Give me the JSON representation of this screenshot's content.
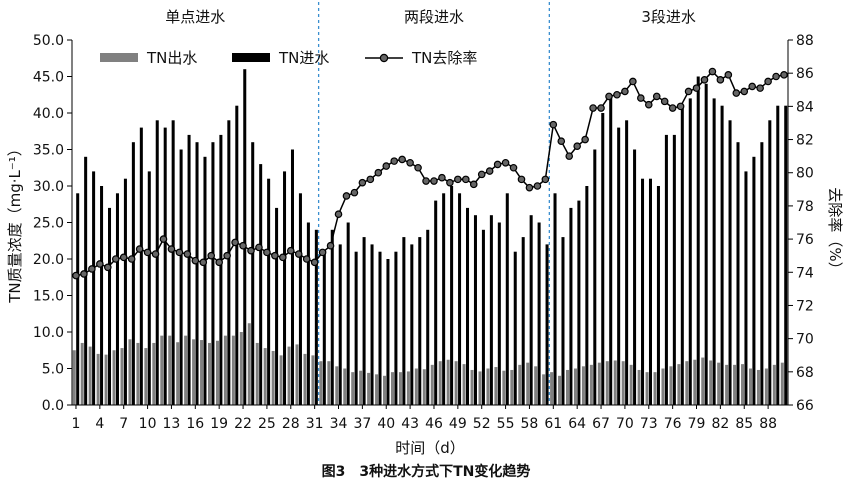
{
  "chart_data": {
    "type": "bar",
    "caption": "图3　3种进水方式下TN变化趋势",
    "xlabel": "时间（d）",
    "ylabel_left": "TN质量浓度（mg·L⁻¹）",
    "ylabel_right": "去除率（%）",
    "ylim_left": [
      0,
      50
    ],
    "ylim_right": [
      66,
      88
    ],
    "yticks_left": [
      "0.0",
      "5.0",
      "10.0",
      "15.0",
      "20.0",
      "25.0",
      "30.0",
      "35.0",
      "40.0",
      "45.0",
      "50.0"
    ],
    "yticks_right": [
      "66",
      "68",
      "70",
      "72",
      "74",
      "76",
      "78",
      "80",
      "82",
      "84",
      "86",
      "88"
    ],
    "xticks": [
      "1",
      "4",
      "7",
      "10",
      "13",
      "16",
      "19",
      "22",
      "25",
      "28",
      "31",
      "34",
      "37",
      "40",
      "43",
      "46",
      "49",
      "52",
      "55",
      "58",
      "61",
      "64",
      "67",
      "70",
      "73",
      "76",
      "79",
      "82",
      "85",
      "88"
    ],
    "sections": [
      "单点进水",
      "两段进水",
      "3段进水"
    ],
    "section_boundaries": [
      32,
      61
    ],
    "legend_position": "top",
    "colors": {
      "effluent": "#808080",
      "influent": "#000000",
      "removal": "#000000",
      "marker": "#666666",
      "divider": "#3a8fd0"
    },
    "series": [
      {
        "name": "TN出水",
        "axis": "left",
        "values": [
          7.5,
          8.5,
          8.0,
          7.0,
          6.9,
          7.5,
          7.8,
          9.0,
          8.5,
          7.8,
          8.5,
          9.5,
          9.5,
          8.6,
          9.5,
          9.0,
          8.9,
          8.5,
          8.8,
          9.5,
          9.5,
          10.0,
          11.2,
          8.5,
          7.8,
          7.4,
          6.8,
          8.0,
          8.3,
          7.0,
          6.8,
          6.0,
          6.0,
          5.3,
          5.0,
          4.5,
          4.7,
          4.4,
          4.2,
          4.0,
          4.5,
          4.5,
          4.6,
          5.0,
          4.9,
          5.5,
          6.0,
          6.2,
          6.0,
          5.6,
          4.8,
          4.6,
          5.0,
          5.2,
          4.7,
          4.8,
          5.5,
          5.8,
          5.3,
          4.2,
          4.5,
          4.0,
          4.8,
          5.0,
          5.3,
          5.5,
          5.8,
          6.0,
          6.1,
          6.0,
          5.5,
          4.8,
          4.5,
          4.5,
          5.0,
          5.3,
          5.6,
          6.0,
          6.2,
          6.5,
          6.1,
          5.8,
          5.5,
          5.5,
          5.6,
          5.0,
          4.8,
          5.0,
          5.5,
          5.8
        ]
      },
      {
        "name": "TN进水",
        "axis": "left",
        "values": [
          29,
          34,
          32,
          30,
          27,
          29,
          31,
          36,
          38,
          32,
          39,
          38,
          39,
          35,
          37,
          36,
          34,
          36,
          37,
          39,
          41,
          46,
          36,
          33,
          31,
          27,
          32,
          35,
          29,
          25,
          24,
          21,
          24,
          22,
          25,
          21,
          23,
          22,
          21,
          20,
          21,
          23,
          22,
          23,
          24,
          28,
          29,
          30,
          29,
          27,
          26,
          24,
          26,
          25,
          29,
          21,
          23,
          26,
          25,
          22,
          29,
          23,
          27,
          28,
          30,
          35,
          40,
          42,
          38,
          39,
          35,
          31,
          31,
          30,
          37,
          37,
          41,
          42,
          45,
          44,
          42,
          41,
          39,
          36,
          32,
          34,
          36,
          39,
          41,
          41
        ]
      },
      {
        "name": "TN去除率",
        "axis": "right",
        "values": [
          73.8,
          73.9,
          74.2,
          74.5,
          74.3,
          74.8,
          74.9,
          74.8,
          75.4,
          75.2,
          75.1,
          76.0,
          75.4,
          75.2,
          75.1,
          74.7,
          74.6,
          75.0,
          74.6,
          75.0,
          75.8,
          75.6,
          75.3,
          75.5,
          75.2,
          75.0,
          74.9,
          75.3,
          75.1,
          74.8,
          74.6,
          75.2,
          75.6,
          77.5,
          78.6,
          78.8,
          79.4,
          79.6,
          80.0,
          80.4,
          80.7,
          80.8,
          80.6,
          80.3,
          79.5,
          79.5,
          79.7,
          79.4,
          79.6,
          79.6,
          79.3,
          79.9,
          80.1,
          80.5,
          80.6,
          80.3,
          79.6,
          79.1,
          79.2,
          79.6,
          82.9,
          81.9,
          81.0,
          81.6,
          82.0,
          83.9,
          83.9,
          84.6,
          84.7,
          84.9,
          85.5,
          84.5,
          84.1,
          84.6,
          84.3,
          83.9,
          84.0,
          84.9,
          85.1,
          85.6,
          86.1,
          85.6,
          85.9,
          84.8,
          84.9,
          85.2,
          85.1,
          85.5,
          85.8,
          85.9
        ]
      }
    ]
  }
}
